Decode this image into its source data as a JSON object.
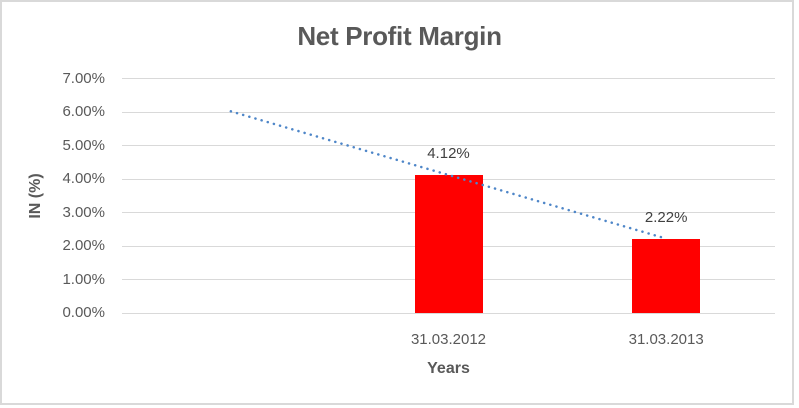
{
  "chart_data": {
    "type": "bar",
    "title": "Net Profit Margin",
    "xlabel": "Years",
    "ylabel": "IN (%)",
    "categories": [
      "",
      "31.03.2012",
      "31.03.2013"
    ],
    "values": [
      null,
      4.12,
      2.22
    ],
    "data_labels": [
      null,
      "4.12%",
      "2.22%"
    ],
    "ytick_labels": [
      "0.00%",
      "1.00%",
      "2.00%",
      "3.00%",
      "4.00%",
      "5.00%",
      "6.00%",
      "7.00%"
    ],
    "ylim": [
      0,
      7
    ],
    "grid": true,
    "legend": "none",
    "bar_color": "#FF0000",
    "trendline": {
      "type": "linear",
      "style": "dotted",
      "color": "#4E86C8",
      "start_value": 6.02,
      "end_value": 2.22
    },
    "colors": {
      "title_text": "#595959",
      "axis_text": "#595959",
      "data_label_text": "#404040",
      "gridline": "#D9D9D9",
      "border": "#D9D9D9",
      "background": "#FFFFFF"
    }
  }
}
